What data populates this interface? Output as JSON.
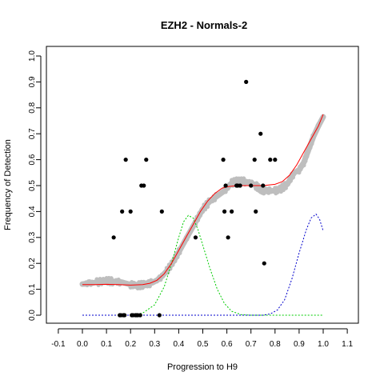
{
  "chart_data": {
    "type": "scatter",
    "title": "EZH2 - Normals-2",
    "xlabel": "Progression to H9",
    "ylabel": "Frequency of Detection",
    "xlim": [
      -0.1,
      1.1
    ],
    "ylim": [
      0.0,
      1.0
    ],
    "x_ticks": [
      "-0.1",
      "0.0",
      "0.1",
      "0.2",
      "0.3",
      "0.4",
      "0.5",
      "0.6",
      "0.7",
      "0.8",
      "0.9",
      "1.0",
      "1.1"
    ],
    "y_ticks": [
      "0.0",
      "0.1",
      "0.2",
      "0.3",
      "0.4",
      "0.5",
      "0.6",
      "0.7",
      "0.8",
      "0.9",
      "1.0"
    ],
    "grid": false,
    "colors": {
      "points": "#000000",
      "smoothed": "#bebebe",
      "fit": "#ff0000",
      "green_curve": "#00cc00",
      "blue_curve": "#0000cc"
    },
    "series": [
      {
        "type": "scatter",
        "color": "#000000",
        "points": [
          [
            0.13,
            0.3
          ],
          [
            0.155,
            0.0
          ],
          [
            0.16,
            0.0
          ],
          [
            0.165,
            0.4
          ],
          [
            0.17,
            0.0
          ],
          [
            0.175,
            0.0
          ],
          [
            0.18,
            0.6
          ],
          [
            0.2,
            0.4
          ],
          [
            0.205,
            0.0
          ],
          [
            0.21,
            0.0
          ],
          [
            0.22,
            0.0
          ],
          [
            0.225,
            0.0
          ],
          [
            0.23,
            0.0
          ],
          [
            0.24,
            0.0
          ],
          [
            0.245,
            0.5
          ],
          [
            0.255,
            0.5
          ],
          [
            0.265,
            0.6
          ],
          [
            0.32,
            0.0
          ],
          [
            0.33,
            0.4
          ],
          [
            0.47,
            0.3
          ],
          [
            0.585,
            0.6
          ],
          [
            0.59,
            0.4
          ],
          [
            0.595,
            0.5
          ],
          [
            0.605,
            0.3
          ],
          [
            0.62,
            0.4
          ],
          [
            0.64,
            0.5
          ],
          [
            0.645,
            0.5
          ],
          [
            0.655,
            0.5
          ],
          [
            0.68,
            0.9
          ],
          [
            0.7,
            0.5
          ],
          [
            0.715,
            0.6
          ],
          [
            0.72,
            0.4
          ],
          [
            0.74,
            0.7
          ],
          [
            0.75,
            0.5
          ],
          [
            0.755,
            0.2
          ],
          [
            0.78,
            0.6
          ],
          [
            0.8,
            0.6
          ]
        ]
      },
      {
        "type": "smoothed",
        "color": "#bebebe",
        "points": [
          [
            0.0,
            0.12
          ],
          [
            0.03,
            0.123
          ],
          [
            0.06,
            0.127
          ],
          [
            0.1,
            0.133
          ],
          [
            0.13,
            0.13
          ],
          [
            0.16,
            0.128
          ],
          [
            0.2,
            0.118
          ],
          [
            0.23,
            0.115
          ],
          [
            0.26,
            0.118
          ],
          [
            0.29,
            0.125
          ],
          [
            0.32,
            0.14
          ],
          [
            0.35,
            0.17
          ],
          [
            0.38,
            0.21
          ],
          [
            0.41,
            0.26
          ],
          [
            0.44,
            0.31
          ],
          [
            0.47,
            0.36
          ],
          [
            0.5,
            0.41
          ],
          [
            0.53,
            0.44
          ],
          [
            0.56,
            0.46
          ],
          [
            0.59,
            0.48
          ],
          [
            0.62,
            0.51
          ],
          [
            0.65,
            0.52
          ],
          [
            0.68,
            0.515
          ],
          [
            0.7,
            0.51
          ],
          [
            0.72,
            0.5
          ],
          [
            0.74,
            0.485
          ],
          [
            0.76,
            0.48
          ],
          [
            0.78,
            0.48
          ],
          [
            0.8,
            0.48
          ],
          [
            0.82,
            0.485
          ],
          [
            0.85,
            0.505
          ],
          [
            0.88,
            0.55
          ],
          [
            0.9,
            0.56
          ],
          [
            0.92,
            0.59
          ],
          [
            0.94,
            0.64
          ],
          [
            0.96,
            0.69
          ],
          [
            0.98,
            0.73
          ],
          [
            1.0,
            0.765
          ]
        ]
      },
      {
        "type": "fit",
        "color": "#ff0000",
        "points": [
          [
            0.0,
            0.118
          ],
          [
            0.05,
            0.118
          ],
          [
            0.1,
            0.119
          ],
          [
            0.15,
            0.118
          ],
          [
            0.2,
            0.116
          ],
          [
            0.25,
            0.118
          ],
          [
            0.28,
            0.123
          ],
          [
            0.31,
            0.135
          ],
          [
            0.34,
            0.16
          ],
          [
            0.37,
            0.2
          ],
          [
            0.4,
            0.25
          ],
          [
            0.43,
            0.3
          ],
          [
            0.46,
            0.35
          ],
          [
            0.49,
            0.4
          ],
          [
            0.52,
            0.44
          ],
          [
            0.55,
            0.47
          ],
          [
            0.58,
            0.49
          ],
          [
            0.61,
            0.497
          ],
          [
            0.65,
            0.5
          ],
          [
            0.7,
            0.5
          ],
          [
            0.75,
            0.5
          ],
          [
            0.8,
            0.505
          ],
          [
            0.83,
            0.515
          ],
          [
            0.86,
            0.54
          ],
          [
            0.89,
            0.58
          ],
          [
            0.92,
            0.63
          ],
          [
            0.95,
            0.68
          ],
          [
            0.98,
            0.73
          ],
          [
            1.0,
            0.775
          ]
        ]
      },
      {
        "type": "curve",
        "color": "#00cc00",
        "points": [
          [
            0.0,
            0.0
          ],
          [
            0.2,
            0.0
          ],
          [
            0.25,
            0.008
          ],
          [
            0.3,
            0.04
          ],
          [
            0.34,
            0.11
          ],
          [
            0.37,
            0.2
          ],
          [
            0.4,
            0.3
          ],
          [
            0.42,
            0.36
          ],
          [
            0.44,
            0.385
          ],
          [
            0.46,
            0.375
          ],
          [
            0.48,
            0.33
          ],
          [
            0.5,
            0.27
          ],
          [
            0.53,
            0.18
          ],
          [
            0.56,
            0.1
          ],
          [
            0.59,
            0.045
          ],
          [
            0.62,
            0.015
          ],
          [
            0.66,
            0.002
          ],
          [
            0.7,
            0.0
          ],
          [
            1.0,
            0.0
          ]
        ]
      },
      {
        "type": "curve",
        "color": "#0000cc",
        "points": [
          [
            0.0,
            0.0
          ],
          [
            0.75,
            0.0
          ],
          [
            0.78,
            0.005
          ],
          [
            0.81,
            0.02
          ],
          [
            0.84,
            0.06
          ],
          [
            0.87,
            0.14
          ],
          [
            0.9,
            0.24
          ],
          [
            0.93,
            0.33
          ],
          [
            0.95,
            0.375
          ],
          [
            0.97,
            0.39
          ],
          [
            0.985,
            0.37
          ],
          [
            1.0,
            0.325
          ]
        ]
      }
    ]
  }
}
